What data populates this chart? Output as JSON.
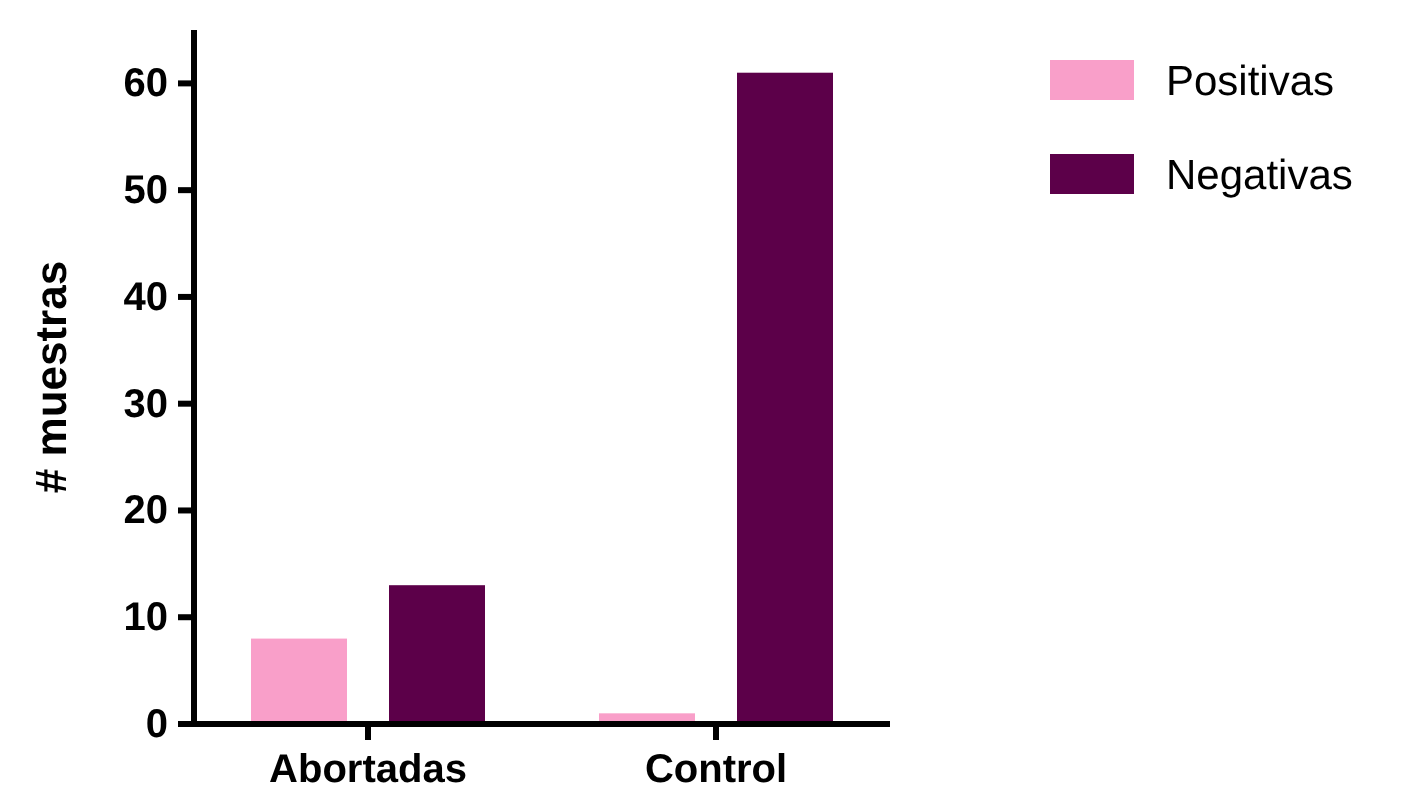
{
  "chart_data": {
    "type": "bar",
    "ylabel": "# muestras",
    "categories": [
      "Abortadas",
      "Control"
    ],
    "series": [
      {
        "name": "Positivas",
        "color": "#f99fc9",
        "values": [
          8,
          1
        ]
      },
      {
        "name": "Negativas",
        "color": "#5c0049",
        "values": [
          13,
          61
        ]
      }
    ],
    "ylim": [
      0,
      65
    ],
    "yticks": [
      0,
      10,
      20,
      30,
      40,
      50,
      60
    ],
    "grid": false,
    "legend": "top right"
  }
}
